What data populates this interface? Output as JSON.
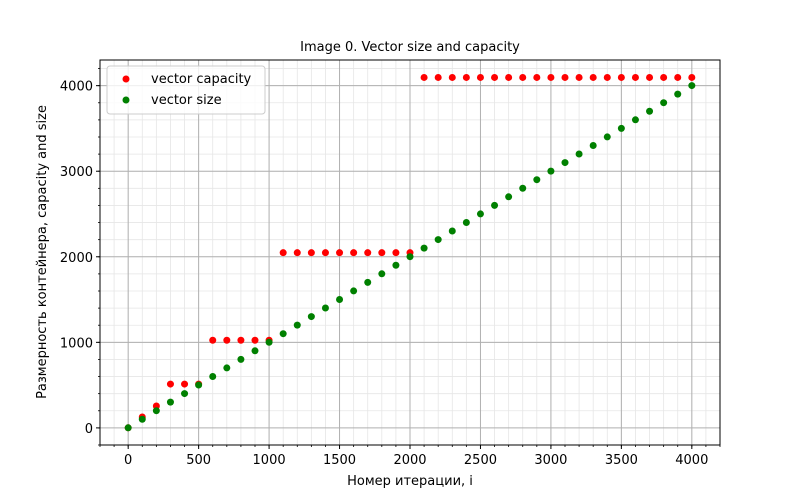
{
  "chart_data": {
    "type": "scatter",
    "title": "Image 0. Vector size and capacity",
    "xlabel": "Номер итерации, i",
    "ylabel": "Размерность контейнера, capacity and size",
    "xlim": [
      -200,
      4200
    ],
    "ylim": [
      -200,
      4300
    ],
    "x_ticks": [
      0,
      500,
      1000,
      1500,
      2000,
      2500,
      3000,
      3500,
      4000
    ],
    "y_ticks": [
      0,
      1000,
      2000,
      3000,
      4000
    ],
    "x_tick_labels": [
      "0",
      "500",
      "1000",
      "1500",
      "2000",
      "2500",
      "3000",
      "3500",
      "4000"
    ],
    "y_tick_labels": [
      "0",
      "1000",
      "2000",
      "3000",
      "4000"
    ],
    "x_minor_step": 100,
    "y_minor_step": 200,
    "grid": true,
    "minor_grid": true,
    "legend_position": "top-left",
    "x": [
      0,
      100,
      200,
      300,
      400,
      500,
      600,
      700,
      800,
      900,
      1000,
      1100,
      1200,
      1300,
      1400,
      1500,
      1600,
      1700,
      1800,
      1900,
      2000,
      2100,
      2200,
      2300,
      2400,
      2500,
      2600,
      2700,
      2800,
      2900,
      3000,
      3100,
      3200,
      3300,
      3400,
      3500,
      3600,
      3700,
      3800,
      3900,
      4000
    ],
    "series": [
      {
        "name": "vector capacity",
        "color": "#ff0000",
        "values": [
          1,
          128,
          256,
          512,
          512,
          512,
          1024,
          1024,
          1024,
          1024,
          1024,
          2048,
          2048,
          2048,
          2048,
          2048,
          2048,
          2048,
          2048,
          2048,
          2048,
          4096,
          4096,
          4096,
          4096,
          4096,
          4096,
          4096,
          4096,
          4096,
          4096,
          4096,
          4096,
          4096,
          4096,
          4096,
          4096,
          4096,
          4096,
          4096,
          4096
        ]
      },
      {
        "name": "vector size",
        "color": "#008000",
        "values": [
          1,
          101,
          201,
          301,
          401,
          501,
          601,
          701,
          801,
          901,
          1001,
          1101,
          1201,
          1301,
          1401,
          1501,
          1601,
          1701,
          1801,
          1901,
          2001,
          2101,
          2201,
          2301,
          2401,
          2501,
          2601,
          2701,
          2801,
          2901,
          3001,
          3101,
          3201,
          3301,
          3401,
          3501,
          3601,
          3701,
          3801,
          3901,
          4001
        ]
      }
    ]
  }
}
